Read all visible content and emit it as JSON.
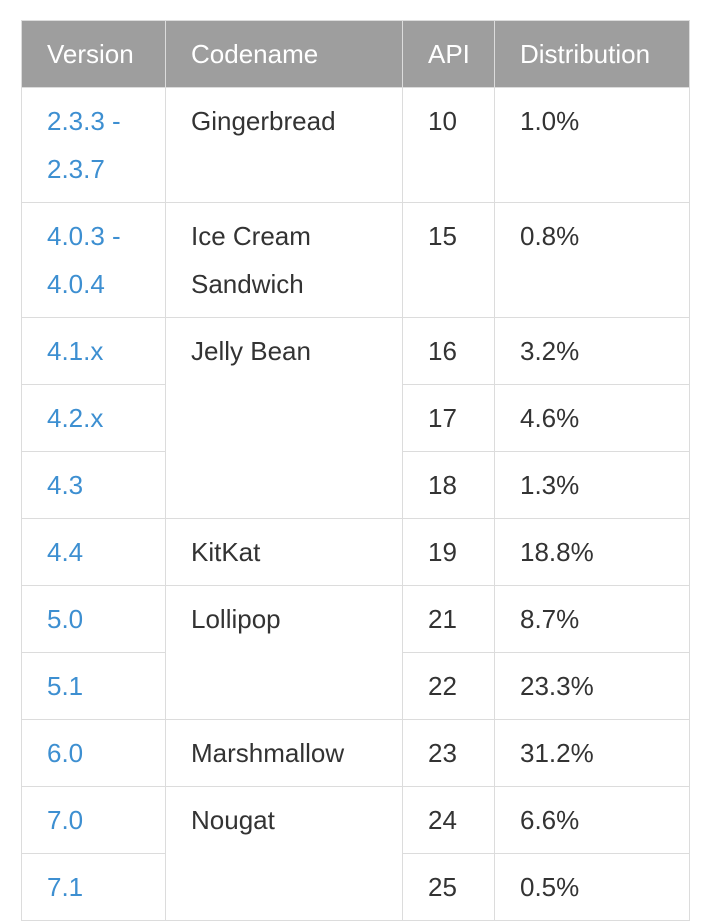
{
  "table": {
    "headers": [
      "Version",
      "Codename",
      "API",
      "Distribution"
    ],
    "rows": [
      {
        "version": [
          "2.3.3 -",
          "2.3.7"
        ],
        "codename": [
          "Gingerbread"
        ],
        "api": "10",
        "distribution": "1.0%"
      },
      {
        "version": [
          "4.0.3 -",
          "4.0.4"
        ],
        "codename": [
          "Ice Cream",
          "Sandwich"
        ],
        "api": "15",
        "distribution": "0.8%"
      },
      {
        "version": [
          "4.1.x"
        ],
        "codename": [
          "Jelly Bean"
        ],
        "codename_rowspan": 3,
        "api": "16",
        "distribution": "3.2%"
      },
      {
        "version": [
          "4.2.x"
        ],
        "api": "17",
        "distribution": "4.6%"
      },
      {
        "version": [
          "4.3"
        ],
        "api": "18",
        "distribution": "1.3%"
      },
      {
        "version": [
          "4.4"
        ],
        "codename": [
          "KitKat"
        ],
        "api": "19",
        "distribution": "18.8%"
      },
      {
        "version": [
          "5.0"
        ],
        "codename": [
          "Lollipop"
        ],
        "codename_rowspan": 2,
        "api": "21",
        "distribution": "8.7%"
      },
      {
        "version": [
          "5.1"
        ],
        "api": "22",
        "distribution": "23.3%"
      },
      {
        "version": [
          "6.0"
        ],
        "codename": [
          "Marshmallow"
        ],
        "api": "23",
        "distribution": "31.2%"
      },
      {
        "version": [
          "7.0"
        ],
        "codename": [
          "Nougat"
        ],
        "codename_rowspan": 2,
        "api": "24",
        "distribution": "6.6%"
      },
      {
        "version": [
          "7.1"
        ],
        "api": "25",
        "distribution": "0.5%"
      }
    ]
  },
  "colors": {
    "header_bg": "#9e9e9e",
    "header_text": "#ffffff",
    "link": "#3d8fd1",
    "text": "#333333",
    "border": "#dcdcdc"
  }
}
